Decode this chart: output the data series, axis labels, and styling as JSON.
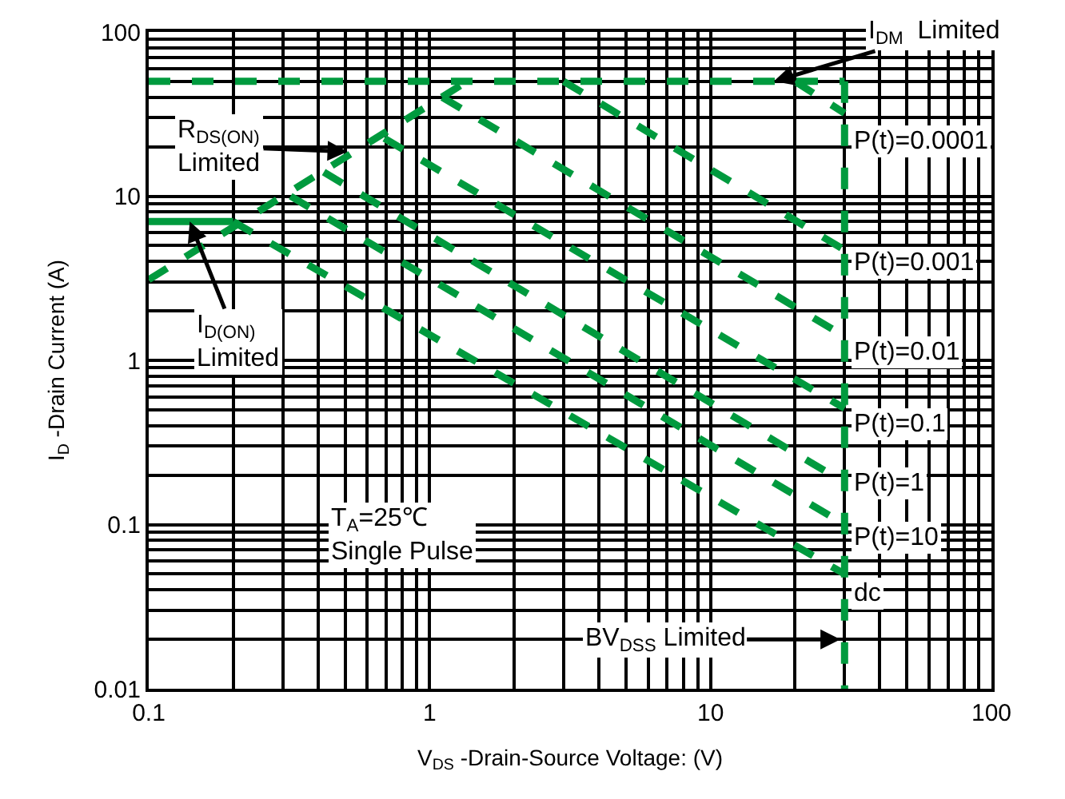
{
  "chart_data": {
    "type": "line",
    "xlabel": "V$_{DS}$ -Drain-Source Voltage: (V)",
    "ylabel": "I$_{D}$ -Drain Current (A)",
    "log": "xy",
    "grid": true,
    "xlim": [
      0.1,
      100
    ],
    "xticks": [
      0.1,
      1,
      10,
      100
    ],
    "ylim": [
      0.01,
      100
    ],
    "yticks": [
      0.01,
      0.1,
      1,
      10,
      100
    ],
    "series": [
      {
        "color": "#009a3e",
        "line_style": "solid",
        "x": [
          0.1,
          0.2
        ],
        "values": [
          7,
          7
        ]
      },
      {
        "color": "#009a3e",
        "line_style": "dashed",
        "x": [
          0.1,
          1.36
        ],
        "values": [
          3.1,
          50
        ]
      },
      {
        "color": "#009a3e",
        "line_style": "dashed",
        "x": [
          0.1,
          30
        ],
        "values": [
          50,
          50
        ]
      },
      {
        "color": "#009a3e",
        "line_style": "dashed",
        "x": [
          30,
          30
        ],
        "values": [
          50,
          0.01
        ]
      },
      {
        "color": "#009a3e",
        "line_style": "dashed",
        "x": [
          20,
          30
        ],
        "values": [
          50,
          32
        ]
      },
      {
        "color": "#009a3e",
        "line_style": "dashed",
        "x": [
          3,
          30
        ],
        "values": [
          50,
          4.7
        ]
      },
      {
        "color": "#009a3e",
        "line_style": "dashed",
        "x": [
          1.11,
          30
        ],
        "values": [
          40,
          1.4
        ]
      },
      {
        "color": "#009a3e",
        "line_style": "dashed",
        "x": [
          0.69,
          30
        ],
        "values": [
          22.5,
          0.51
        ]
      },
      {
        "color": "#009a3e",
        "line_style": "dashed",
        "x": [
          0.42,
          30
        ],
        "values": [
          14,
          0.18
        ]
      },
      {
        "color": "#009a3e",
        "line_style": "dashed",
        "x": [
          0.32,
          30
        ],
        "values": [
          10,
          0.1
        ]
      },
      {
        "color": "#009a3e",
        "line_style": "dashed",
        "x": [
          0.2,
          30
        ],
        "values": [
          7,
          0.05
        ]
      }
    ],
    "annotations": [
      {
        "text": "I$_{DM}$  Limited",
        "x": 16.8,
        "y": 50
      },
      {
        "text": "R$_{DS(ON)}$\nLimited",
        "x": 0.51,
        "y": 18.7
      },
      {
        "text": "I$_{D(ON)}$\nLimited",
        "x": 0.14,
        "y": 7
      },
      {
        "text": "P(t)=0.0001",
        "x": 30,
        "y": 32
      },
      {
        "text": "P(t)=0.001",
        "x": 30,
        "y": 4.7
      },
      {
        "text": "P(t)=0.01",
        "x": 30,
        "y": 1.4
      },
      {
        "text": "P(t)=0.1",
        "x": 30,
        "y": 0.51
      },
      {
        "text": "P(t)=1",
        "x": 30,
        "y": 0.18
      },
      {
        "text": "P(t)=10",
        "x": 30,
        "y": 0.1
      },
      {
        "text": "dc",
        "x": 30,
        "y": 0.05
      },
      "T$_{A}$=25℃\nSingle Pulse",
      {
        "text": "BV$_{DSS}$ Limited",
        "x": 29,
        "y": 0.02
      }
    ]
  }
}
